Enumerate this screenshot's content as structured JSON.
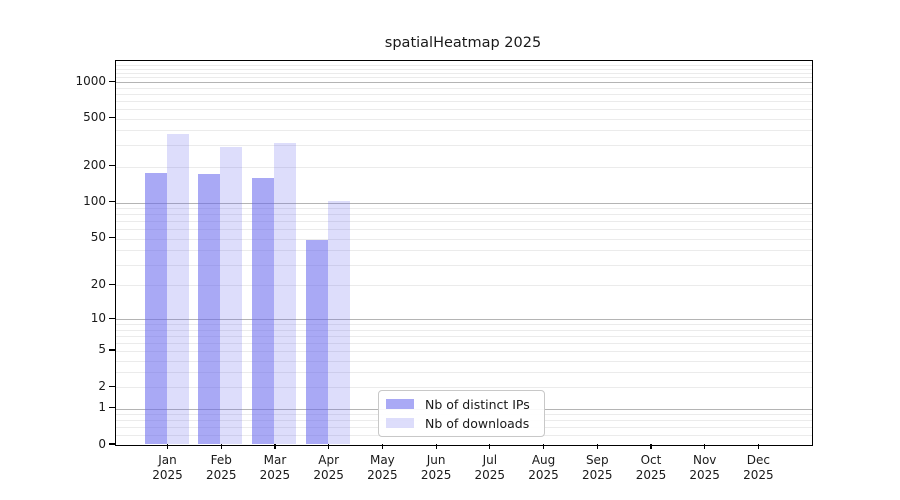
{
  "figure": {
    "title": "spatialHeatmap 2025"
  },
  "chart_data": {
    "type": "bar",
    "title": "spatialHeatmap 2025",
    "categories": [
      "Jan 2025",
      "Feb 2025",
      "Mar 2025",
      "Apr 2025",
      "May 2025",
      "Jun 2025",
      "Jul 2025",
      "Aug 2025",
      "Sep 2025",
      "Oct 2025",
      "Nov 2025",
      "Dec 2025"
    ],
    "series": [
      {
        "name": "Nb of distinct IPs",
        "color": "rgba(102,102,238,0.56)",
        "values": [
          178,
          175,
          161,
          49,
          0,
          0,
          0,
          0,
          0,
          0,
          0,
          0
        ]
      },
      {
        "name": "Nb of downloads",
        "color": "rgba(102,102,238,0.22)",
        "values": [
          375,
          291,
          315,
          103,
          0,
          0,
          0,
          0,
          0,
          0,
          0,
          0
        ]
      }
    ],
    "xlabel": "",
    "ylabel": "",
    "y_scale": "log1p",
    "ylim": [
      0,
      1445
    ],
    "y_ticks": [
      0,
      1,
      2,
      5,
      10,
      20,
      50,
      100,
      200,
      500,
      1000
    ],
    "y_major_gridlines": [
      1,
      10,
      100,
      1000
    ],
    "y_minor_gridlines": [
      0.2,
      0.4,
      0.6,
      0.8,
      2,
      3,
      4,
      5,
      6,
      7,
      8,
      9,
      20,
      30,
      40,
      50,
      60,
      70,
      80,
      90,
      200,
      300,
      400,
      500,
      600,
      700,
      800,
      900,
      1100,
      1200,
      1300,
      1400
    ],
    "grid": true,
    "legend_position": "bottom-center"
  },
  "colors": {
    "bar_distinct_ips": "rgba(102,102,238,0.56)",
    "bar_downloads": "rgba(102,102,238,0.22)",
    "grid_major": "#b4b4b4",
    "grid_minor": "#ebebeb",
    "spine": "#000000",
    "background": "#ffffff"
  },
  "legend": {
    "items": [
      {
        "label": "Nb of distinct IPs"
      },
      {
        "label": "Nb of downloads"
      }
    ]
  }
}
